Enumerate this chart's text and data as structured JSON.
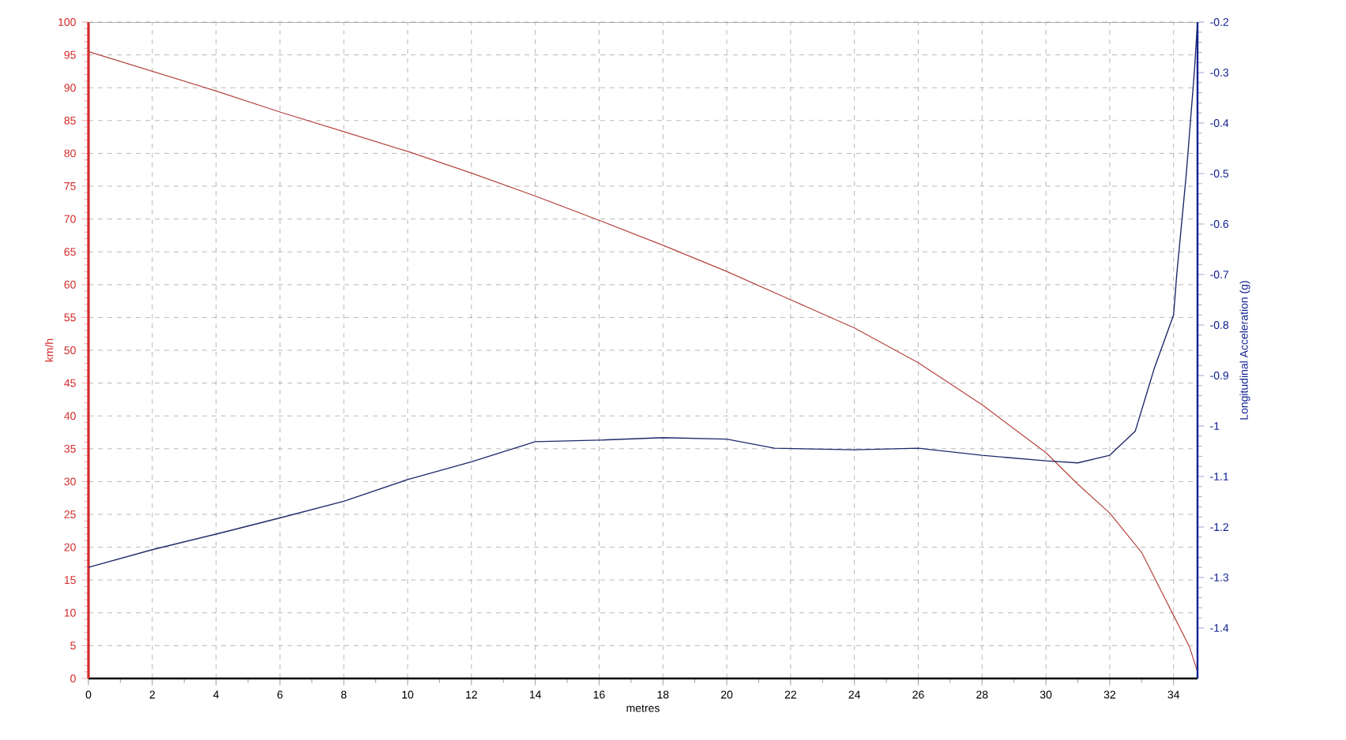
{
  "chart_data": {
    "type": "line",
    "xlabel": "metres",
    "ylabel": "km/h",
    "y2label": "Longitudinal Acceleration (g)",
    "xlim": [
      0,
      34.75
    ],
    "xticks": [
      0,
      2,
      4,
      6,
      8,
      10,
      12,
      14,
      16,
      18,
      20,
      22,
      24,
      26,
      28,
      30,
      32,
      34
    ],
    "ylim": [
      0,
      100
    ],
    "yticks": [
      0,
      5,
      10,
      15,
      20,
      25,
      30,
      35,
      40,
      45,
      50,
      55,
      60,
      65,
      70,
      75,
      80,
      85,
      90,
      95,
      100
    ],
    "y2lim": [
      -1.5,
      -0.2
    ],
    "y2ticks": [
      -1.4,
      -1.3,
      -1.2,
      -1.1,
      -1,
      -0.9,
      -0.8,
      -0.7,
      -0.6,
      -0.5,
      -0.4,
      -0.3,
      -0.2
    ],
    "grid": true,
    "series": [
      {
        "color": "#b5443f",
        "x": [
          0,
          2,
          4,
          6,
          8,
          10,
          12,
          14,
          16,
          18,
          20,
          22,
          24,
          26,
          28,
          30,
          31,
          32,
          33,
          34,
          34.5,
          34.75
        ],
        "values": [
          95.5,
          92.5,
          89.5,
          86.3,
          83.3,
          80.3,
          77,
          73.5,
          69.8,
          66,
          62,
          57.7,
          53.4,
          48.1,
          41.7,
          34.4,
          29.6,
          25.2,
          19.2,
          9.6,
          4.8,
          1
        ]
      },
      {
        "color": "#1f2a6b",
        "axis": "y2",
        "x": [
          0,
          2,
          4,
          6,
          8,
          10,
          12,
          14,
          16,
          18,
          20,
          21.5,
          24,
          26,
          28,
          30,
          31,
          32,
          32.8,
          33.4,
          34,
          34.1,
          34.4,
          34.65,
          34.75
        ],
        "values": [
          -1.28,
          -1.245,
          -1.214,
          -1.182,
          -1.149,
          -1.106,
          -1.071,
          -1.031,
          -1.028,
          -1.023,
          -1.026,
          -1.044,
          -1.047,
          -1.044,
          -1.058,
          -1.069,
          -1.073,
          -1.058,
          -1.01,
          -0.885,
          -0.78,
          -0.7,
          -0.5,
          -0.3,
          -0.2
        ]
      }
    ]
  }
}
